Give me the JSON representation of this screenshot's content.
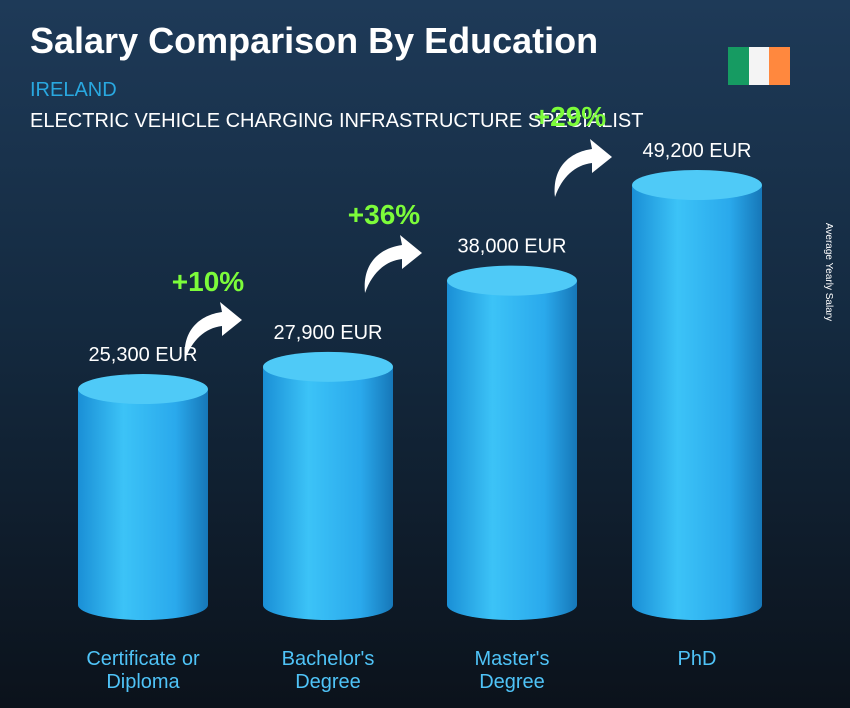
{
  "chart_data": {
    "type": "cylinder-bar",
    "title": "Salary Comparison By Education",
    "subtitle": "IRELAND",
    "job_title": "ELECTRIC VEHICLE CHARGING INFRASTRUCTURE SPECIALIST",
    "axis_label": "Average Yearly Salary",
    "categories": [
      "Certificate or Diploma",
      "Bachelor's Degree",
      "Master's Degree",
      "PhD"
    ],
    "values": [
      25300,
      27900,
      38000,
      49200
    ],
    "value_labels": [
      "25,300 EUR",
      "27,900 EUR",
      "38,000 EUR",
      "49,200 EUR"
    ],
    "increases": [
      "+10%",
      "+36%",
      "+29%"
    ],
    "color": "#29b6f6"
  }
}
